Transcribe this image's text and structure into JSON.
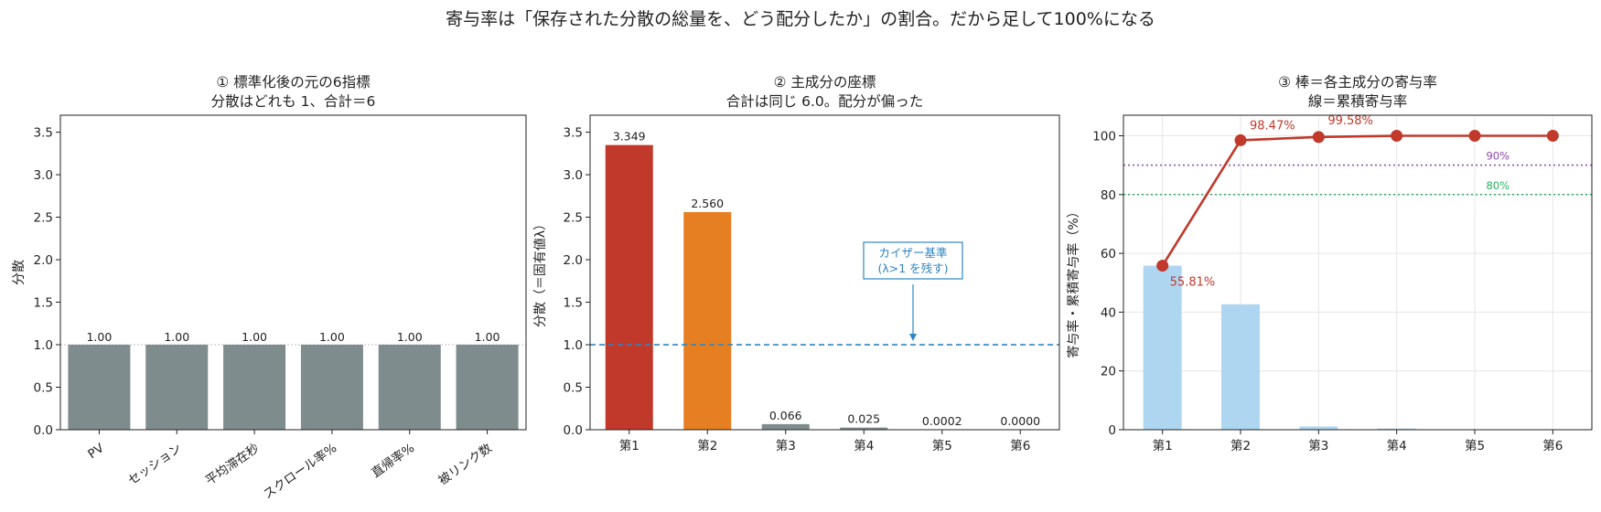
{
  "figure": {
    "suptitle": "寄与率は「保存された分散の総量を、どう配分したか」の割合。だから足して100%になる"
  },
  "colors": {
    "gray_bar": "#7f8c8d",
    "red": "#c0392b",
    "orange": "#e67e22",
    "blue": "#2e86c1",
    "light_blue": "#aed6f1",
    "purple": "#8e44ad",
    "green": "#27ae60"
  },
  "chart_data": [
    {
      "type": "bar",
      "title": "① 標準化後の元の6指標",
      "subtitle": "分散はどれも 1、合計＝6",
      "ylabel": "分散",
      "xlabel": "",
      "categories": [
        "PV",
        "セッション",
        "平均滞在秒",
        "スクロール率%",
        "直帰率%",
        "被リンク数"
      ],
      "values": [
        1.0,
        1.0,
        1.0,
        1.0,
        1.0,
        1.0
      ],
      "data_labels": [
        "1.00",
        "1.00",
        "1.00",
        "1.00",
        "1.00",
        "1.00"
      ],
      "ylim": [
        0,
        3.7
      ],
      "yticks": [
        0.0,
        0.5,
        1.0,
        1.5,
        2.0,
        2.5,
        3.0,
        3.5
      ],
      "ytick_labels": [
        "0.0",
        "0.5",
        "1.0",
        "1.5",
        "2.0",
        "2.5",
        "3.0",
        "3.5"
      ],
      "reference_line": 1.0,
      "grid": false
    },
    {
      "type": "bar",
      "title": "② 主成分の座標",
      "subtitle": "合計は同じ 6.0。配分が偏った",
      "ylabel": "分散（＝固有値λ）",
      "xlabel": "",
      "categories": [
        "第1",
        "第2",
        "第3",
        "第4",
        "第5",
        "第6"
      ],
      "values": [
        3.349,
        2.56,
        0.066,
        0.025,
        0.0002,
        0.0
      ],
      "data_labels": [
        "3.349",
        "2.560",
        "0.066",
        "0.025",
        "0.0002",
        "0.0000"
      ],
      "ylim": [
        0,
        3.7
      ],
      "yticks": [
        0.0,
        0.5,
        1.0,
        1.5,
        2.0,
        2.5,
        3.0,
        3.5
      ],
      "ytick_labels": [
        "0.0",
        "0.5",
        "1.0",
        "1.5",
        "2.0",
        "2.5",
        "3.0",
        "3.5"
      ],
      "reference_line": 1.0,
      "annotation": {
        "line1": "カイザー基準",
        "line2": "(λ>1 を残す)",
        "arrow_to_y": 1.0
      },
      "grid": false
    },
    {
      "type": "bar+line",
      "title": "③ 棒＝各主成分の寄与率",
      "subtitle": "線＝累積寄与率",
      "ylabel": "寄与率・累積寄与率（%）",
      "xlabel": "",
      "categories": [
        "第1",
        "第2",
        "第3",
        "第4",
        "第5",
        "第6"
      ],
      "bar_values": [
        55.81,
        42.67,
        1.1,
        0.42,
        0.0,
        0.0
      ],
      "cumulative": [
        55.81,
        98.47,
        99.58,
        100.0,
        100.0,
        100.0
      ],
      "cumulative_labels": [
        "55.81%",
        "98.47%",
        "99.58%"
      ],
      "ylim": [
        0,
        107
      ],
      "yticks": [
        0,
        20,
        40,
        60,
        80,
        100
      ],
      "ytick_labels": [
        "0",
        "20",
        "40",
        "60",
        "80",
        "100"
      ],
      "thresholds": [
        {
          "value": 90,
          "label": "90%"
        },
        {
          "value": 80,
          "label": "80%"
        }
      ],
      "grid": true
    }
  ]
}
